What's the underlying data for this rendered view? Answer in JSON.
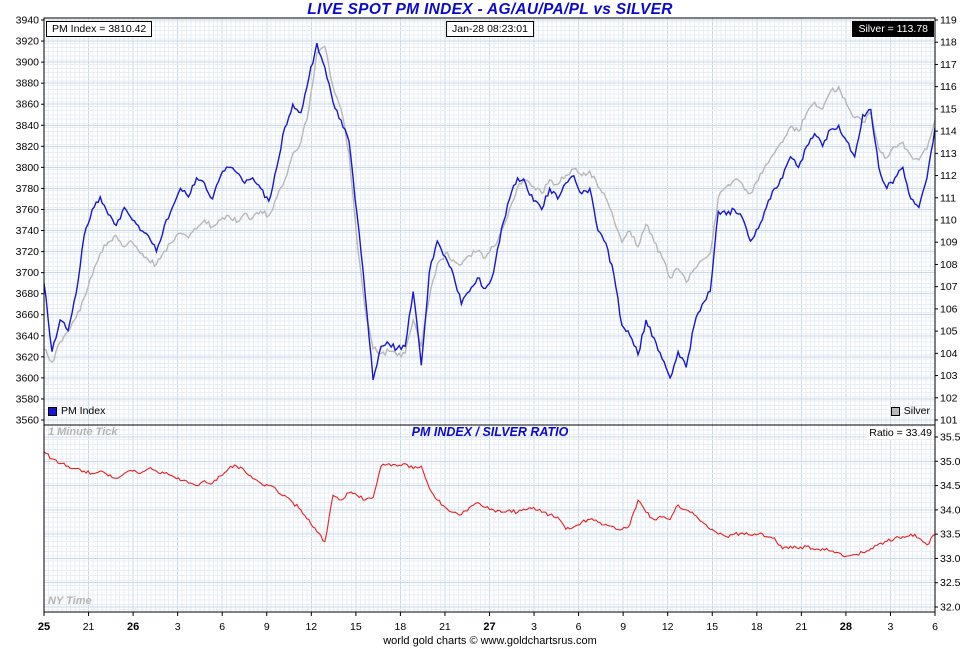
{
  "page": {
    "title": "LIVE SPOT PM INDEX - AG/AU/PA/PL vs SILVER",
    "footer": "world gold charts © www.goldchartsrus.com"
  },
  "header": {
    "pm_index_value": "PM Index = 3810.42",
    "timestamp": "Jan-28 08:23:01",
    "silver_value": "Silver = 113.78"
  },
  "legend": {
    "pm_index": "PM Index",
    "silver": "Silver"
  },
  "ratio_panel": {
    "tick_note": "1 Minute Tick",
    "title": "PM INDEX / SILVER RATIO",
    "ratio_value": "Ratio = 33.49",
    "timezone_note": "NY Time"
  },
  "colors": {
    "pm_index": "#1717d0",
    "silver": "#b8b8b8",
    "ratio": "#e62222",
    "title_blue": "#0a0ace",
    "grid_minor": "#e7eef5",
    "grid_major": "#c9d8e8"
  },
  "chart_data": [
    {
      "type": "line",
      "title": "LIVE SPOT PM INDEX - AG/AU/PA/PL vs SILVER",
      "timestamp": "Jan-28 08:23:01",
      "grid": true,
      "legend_position": "bottom-inside",
      "left_axis": {
        "label": "PM Index",
        "min": 3560,
        "max": 3940,
        "step": 20,
        "ticks": [
          3940,
          3920,
          3900,
          3880,
          3860,
          3840,
          3820,
          3800,
          3780,
          3760,
          3740,
          3720,
          3700,
          3680,
          3660,
          3640,
          3620,
          3600,
          3580,
          3560
        ]
      },
      "right_axis": {
        "label": "Silver",
        "min": 101,
        "max": 119,
        "step": 1,
        "ticks": [
          119,
          118,
          117,
          116,
          115,
          114,
          113,
          112,
          111,
          110,
          109,
          108,
          107,
          106,
          105,
          104,
          103,
          102,
          101
        ]
      },
      "series": [
        {
          "name": "PM Index",
          "axis": "left",
          "color_key": "pm_index",
          "current": 3810.42,
          "values": [
            3690,
            3625,
            3655,
            3645,
            3680,
            3735,
            3760,
            3772,
            3755,
            3745,
            3762,
            3750,
            3740,
            3735,
            3720,
            3745,
            3762,
            3780,
            3772,
            3790,
            3785,
            3770,
            3792,
            3800,
            3795,
            3785,
            3790,
            3780,
            3768,
            3800,
            3838,
            3860,
            3852,
            3885,
            3918,
            3895,
            3862,
            3845,
            3825,
            3755,
            3680,
            3598,
            3630,
            3632,
            3628,
            3630,
            3682,
            3612,
            3700,
            3730,
            3715,
            3698,
            3670,
            3682,
            3695,
            3685,
            3700,
            3742,
            3770,
            3790,
            3785,
            3768,
            3760,
            3780,
            3770,
            3785,
            3792,
            3775,
            3780,
            3740,
            3728,
            3698,
            3650,
            3640,
            3622,
            3655,
            3638,
            3618,
            3600,
            3625,
            3610,
            3650,
            3670,
            3682,
            3758,
            3755,
            3760,
            3752,
            3730,
            3742,
            3762,
            3780,
            3790,
            3810,
            3800,
            3820,
            3832,
            3820,
            3836,
            3840,
            3825,
            3810,
            3850,
            3855,
            3800,
            3780,
            3790,
            3800,
            3770,
            3762,
            3790,
            3838
          ]
        },
        {
          "name": "Silver",
          "axis": "right",
          "color_key": "silver",
          "current": 113.78,
          "values": [
            104.2,
            103.6,
            104.5,
            105.0,
            105.6,
            106.5,
            107.5,
            108.5,
            109.0,
            109.3,
            108.8,
            109.0,
            108.5,
            108.2,
            108.0,
            108.6,
            109.0,
            109.4,
            109.2,
            109.6,
            110.0,
            109.7,
            110.0,
            110.2,
            109.9,
            110.3,
            110.1,
            110.4,
            110.2,
            111.0,
            111.8,
            113.0,
            113.5,
            115.0,
            117.5,
            117.8,
            116.0,
            115.0,
            113.0,
            109.0,
            106.0,
            104.2,
            104.0,
            104.1,
            103.9,
            104.0,
            105.5,
            104.3,
            106.5,
            108.0,
            108.5,
            108.2,
            108.0,
            108.4,
            108.6,
            108.3,
            108.8,
            109.5,
            110.5,
            111.5,
            111.8,
            111.5,
            111.2,
            111.8,
            111.6,
            112.0,
            112.3,
            112.0,
            112.2,
            111.5,
            111.0,
            110.0,
            109.0,
            109.5,
            108.8,
            109.8,
            109.0,
            108.3,
            107.4,
            107.8,
            107.2,
            107.8,
            108.2,
            108.5,
            111.0,
            111.5,
            111.8,
            111.6,
            111.2,
            111.8,
            112.5,
            113.0,
            113.5,
            114.2,
            114.0,
            114.8,
            115.3,
            115.0,
            115.8,
            116.0,
            115.2,
            114.6,
            114.4,
            114.8,
            113.2,
            112.8,
            113.3,
            113.5,
            112.9,
            112.7,
            113.2,
            114.5
          ]
        }
      ]
    },
    {
      "type": "line",
      "title": "PM INDEX / SILVER RATIO",
      "grid": true,
      "right_axis": {
        "label": "Ratio",
        "min": 32.0,
        "max": 35.5,
        "step": 0.5,
        "ticks": [
          35.5,
          35.0,
          34.5,
          34.0,
          33.5,
          33.0,
          32.5,
          32.0
        ]
      },
      "x_axis": {
        "labels": [
          {
            "text": "25",
            "bold": true
          },
          {
            "text": "21",
            "bold": false
          },
          {
            "text": "26",
            "bold": true
          },
          {
            "text": "3",
            "bold": false
          },
          {
            "text": "6",
            "bold": false
          },
          {
            "text": "9",
            "bold": false
          },
          {
            "text": "12",
            "bold": false
          },
          {
            "text": "15",
            "bold": false
          },
          {
            "text": "18",
            "bold": false
          },
          {
            "text": "21",
            "bold": false
          },
          {
            "text": "27",
            "bold": true
          },
          {
            "text": "3",
            "bold": false
          },
          {
            "text": "6",
            "bold": false
          },
          {
            "text": "9",
            "bold": false
          },
          {
            "text": "12",
            "bold": false
          },
          {
            "text": "15",
            "bold": false
          },
          {
            "text": "18",
            "bold": false
          },
          {
            "text": "21",
            "bold": false
          },
          {
            "text": "28",
            "bold": true
          },
          {
            "text": "3",
            "bold": false
          },
          {
            "text": "6",
            "bold": false
          }
        ]
      },
      "series": [
        {
          "name": "Ratio",
          "axis": "right",
          "color_key": "ratio",
          "current": 33.49,
          "values": [
            35.2,
            35.05,
            34.95,
            34.9,
            34.85,
            34.8,
            34.75,
            34.8,
            34.7,
            34.65,
            34.75,
            34.8,
            34.75,
            34.85,
            34.8,
            34.75,
            34.7,
            34.6,
            34.55,
            34.5,
            34.6,
            34.55,
            34.7,
            34.85,
            34.9,
            34.8,
            34.65,
            34.55,
            34.5,
            34.4,
            34.3,
            34.15,
            34.0,
            33.8,
            33.55,
            33.35,
            34.3,
            34.2,
            34.35,
            34.3,
            34.2,
            34.25,
            34.9,
            34.95,
            34.9,
            34.95,
            34.85,
            34.9,
            34.45,
            34.2,
            34.05,
            33.95,
            33.9,
            34.05,
            34.15,
            34.05,
            34.0,
            33.95,
            34.0,
            33.95,
            34.0,
            34.05,
            33.95,
            33.9,
            33.85,
            33.6,
            33.65,
            33.75,
            33.8,
            33.75,
            33.7,
            33.65,
            33.6,
            33.7,
            34.2,
            33.95,
            33.8,
            33.85,
            33.8,
            34.1,
            34.0,
            33.9,
            33.75,
            33.6,
            33.5,
            33.45,
            33.5,
            33.52,
            33.48,
            33.5,
            33.45,
            33.42,
            33.2,
            33.25,
            33.2,
            33.25,
            33.18,
            33.2,
            33.15,
            33.12,
            33.05,
            33.08,
            33.12,
            33.2,
            33.3,
            33.35,
            33.42,
            33.45,
            33.5,
            33.42,
            33.28,
            33.49
          ]
        }
      ]
    }
  ]
}
